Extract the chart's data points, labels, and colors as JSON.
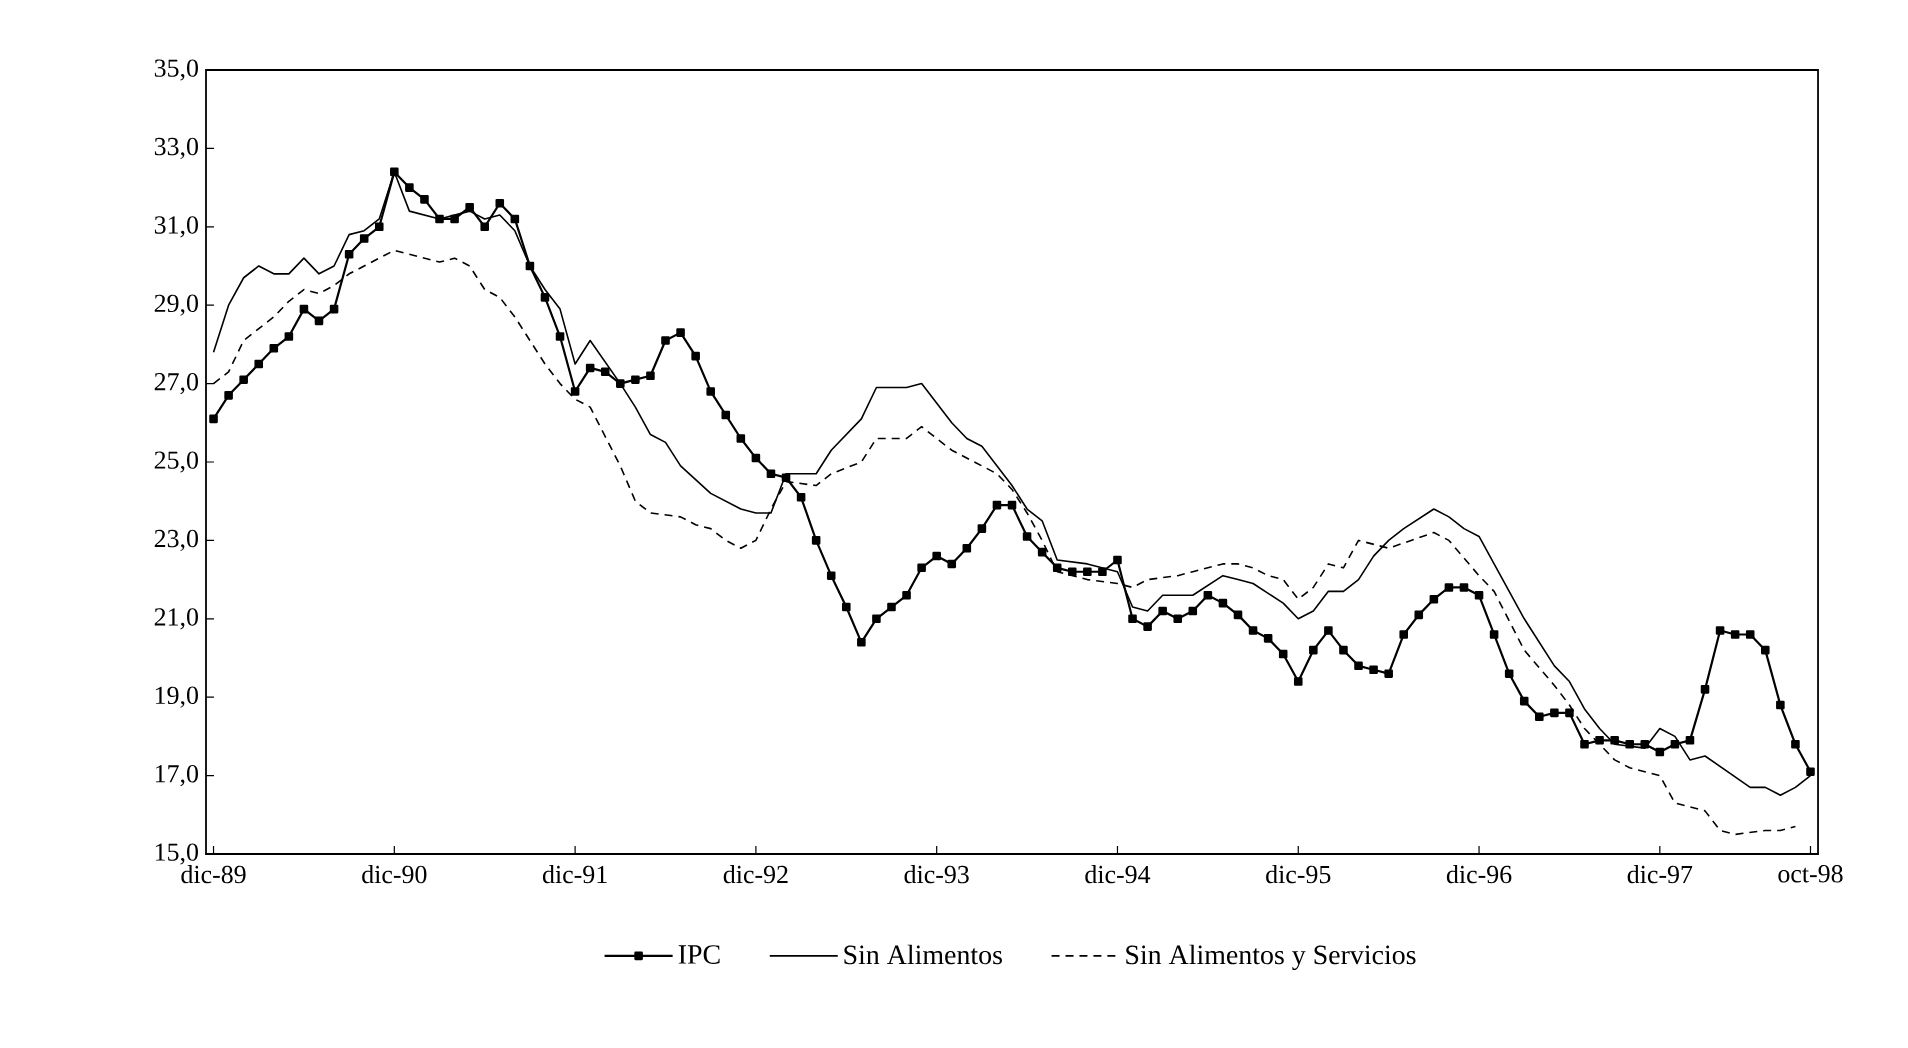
{
  "chart_data": {
    "type": "line",
    "legend": "bottom",
    "grid": false,
    "xlim": [
      "1989-11-16",
      "1998-10-16"
    ],
    "xticks": [
      {
        "value": "1989-12",
        "label": "dic-89"
      },
      {
        "value": "1990-12",
        "label": "dic-90"
      },
      {
        "value": "1991-12",
        "label": "dic-91"
      },
      {
        "value": "1992-12",
        "label": "dic-92"
      },
      {
        "value": "1993-12",
        "label": "dic-93"
      },
      {
        "value": "1994-12",
        "label": "dic-94"
      },
      {
        "value": "1995-12",
        "label": "dic-95"
      },
      {
        "value": "1996-12",
        "label": "dic-96"
      },
      {
        "value": "1997-12",
        "label": "dic-97"
      },
      {
        "value": "1998-10",
        "label": "oct-98"
      }
    ],
    "ylim": [
      15,
      35
    ],
    "yticks": [
      {
        "value": 15,
        "label": "15,0"
      },
      {
        "value": 17,
        "label": "17,0"
      },
      {
        "value": 19,
        "label": "19,0"
      },
      {
        "value": 21,
        "label": "21,0"
      },
      {
        "value": 23,
        "label": "23,0"
      },
      {
        "value": 25,
        "label": "25,0"
      },
      {
        "value": 27,
        "label": "27,0"
      },
      {
        "value": 29,
        "label": "29,0"
      },
      {
        "value": 31,
        "label": "31,0"
      },
      {
        "value": 33,
        "label": "33,0"
      },
      {
        "value": 35,
        "label": "35,0"
      }
    ],
    "series": [
      {
        "name": "IPC",
        "color": "#000000",
        "marker": "square",
        "line_style": "solid",
        "x": [
          "1989-12",
          "1990-01",
          "1990-02",
          "1990-03",
          "1990-04",
          "1990-05",
          "1990-06",
          "1990-07",
          "1990-08",
          "1990-09",
          "1990-10",
          "1990-11",
          "1990-12",
          "1991-01",
          "1991-02",
          "1991-03",
          "1991-04",
          "1991-05",
          "1991-06",
          "1991-07",
          "1991-08",
          "1991-09",
          "1991-10",
          "1991-11",
          "1991-12",
          "1992-01",
          "1992-02",
          "1992-03",
          "1992-04",
          "1992-05",
          "1992-06",
          "1992-07",
          "1992-08",
          "1992-09",
          "1992-10",
          "1992-11",
          "1992-12",
          "1993-01",
          "1993-02",
          "1993-03",
          "1993-04",
          "1993-05",
          "1993-06",
          "1993-07",
          "1993-08",
          "1993-09",
          "1993-10",
          "1993-11",
          "1993-12",
          "1994-01",
          "1994-02",
          "1994-03",
          "1994-04",
          "1994-05",
          "1994-06",
          "1994-07",
          "1994-08",
          "1994-09",
          "1994-10",
          "1994-11",
          "1994-12",
          "1995-01",
          "1995-02",
          "1995-03",
          "1995-04",
          "1995-05",
          "1995-06",
          "1995-07",
          "1995-08",
          "1995-09",
          "1995-10",
          "1995-11",
          "1995-12",
          "1996-01",
          "1996-02",
          "1996-03",
          "1996-04",
          "1996-05",
          "1996-06",
          "1996-07",
          "1996-08",
          "1996-09",
          "1996-10",
          "1996-11",
          "1996-12",
          "1997-01",
          "1997-02",
          "1997-03",
          "1997-04",
          "1997-05",
          "1997-06",
          "1997-07",
          "1997-08",
          "1997-09",
          "1997-10",
          "1997-11",
          "1997-12",
          "1998-01",
          "1998-02",
          "1998-03",
          "1998-04",
          "1998-05",
          "1998-06",
          "1998-07",
          "1998-08",
          "1998-09",
          "1998-10"
        ],
        "values": [
          26.1,
          26.7,
          27.1,
          27.5,
          27.9,
          28.2,
          28.9,
          28.6,
          28.9,
          30.3,
          30.7,
          31.0,
          32.4,
          32.0,
          31.7,
          31.2,
          31.2,
          31.5,
          31.0,
          31.6,
          31.2,
          30.0,
          29.2,
          28.2,
          26.8,
          27.4,
          27.3,
          27.0,
          27.1,
          27.2,
          28.1,
          28.3,
          27.7,
          26.8,
          26.2,
          25.6,
          25.1,
          24.7,
          24.6,
          24.1,
          23.0,
          22.1,
          21.3,
          20.4,
          21.0,
          21.3,
          21.6,
          22.3,
          22.6,
          22.4,
          22.8,
          23.3,
          23.9,
          23.9,
          23.1,
          22.7,
          22.3,
          22.2,
          22.2,
          22.2,
          22.5,
          21.0,
          20.8,
          21.2,
          21.0,
          21.2,
          21.6,
          21.4,
          21.1,
          20.7,
          20.5,
          20.1,
          19.4,
          20.2,
          20.7,
          20.2,
          19.8,
          19.7,
          19.6,
          20.6,
          21.1,
          21.5,
          21.8,
          21.8,
          21.6,
          20.6,
          19.6,
          18.9,
          18.5,
          18.6,
          18.6,
          17.8,
          17.9,
          17.9,
          17.8,
          17.8,
          17.6,
          17.8,
          17.9,
          19.2,
          20.7,
          20.6,
          20.6,
          20.2,
          18.8,
          17.8,
          17.1
        ]
      },
      {
        "name": "Sin Alimentos",
        "color": "#000000",
        "marker": "none",
        "line_style": "solid",
        "x": [
          "1989-12",
          "1990-01",
          "1990-02",
          "1990-03",
          "1990-04",
          "1990-05",
          "1990-06",
          "1990-07",
          "1990-08",
          "1990-09",
          "1990-10",
          "1990-11",
          "1990-12",
          "1991-01",
          "1991-03",
          "1991-05",
          "1991-06",
          "1991-07",
          "1991-08",
          "1991-09",
          "1991-10",
          "1991-11",
          "1991-12",
          "1992-01",
          "1992-03",
          "1992-04",
          "1992-05",
          "1992-06",
          "1992-07",
          "1992-09",
          "1992-11",
          "1992-12",
          "1993-01",
          "1993-02",
          "1993-04",
          "1993-05",
          "1993-07",
          "1993-08",
          "1993-10",
          "1993-11",
          "1994-01",
          "1994-02",
          "1994-03",
          "1994-05",
          "1994-06",
          "1994-07",
          "1994-08",
          "1994-10",
          "1994-12",
          "1995-01",
          "1995-02",
          "1995-03",
          "1995-05",
          "1995-07",
          "1995-08",
          "1995-09",
          "1995-11",
          "1995-12",
          "1996-01",
          "1996-02",
          "1996-03",
          "1996-04",
          "1996-05",
          "1996-06",
          "1996-07",
          "1996-09",
          "1996-10",
          "1996-11",
          "1996-12",
          "1997-01",
          "1997-03",
          "1997-05",
          "1997-06",
          "1997-07",
          "1997-08",
          "1997-09",
          "1997-11",
          "1997-12",
          "1998-01",
          "1998-02",
          "1998-03",
          "1998-06",
          "1998-07",
          "1998-08",
          "1998-09",
          "1998-10"
        ],
        "values": [
          27.8,
          29.0,
          29.7,
          30.0,
          29.8,
          29.8,
          30.2,
          29.8,
          30.0,
          30.8,
          30.9,
          31.2,
          32.4,
          31.4,
          31.2,
          31.4,
          31.2,
          31.3,
          30.9,
          30.0,
          29.4,
          28.9,
          27.5,
          28.1,
          27.0,
          26.4,
          25.7,
          25.5,
          24.9,
          24.2,
          23.8,
          23.7,
          23.7,
          24.7,
          24.7,
          25.3,
          26.1,
          26.9,
          26.9,
          27.0,
          26.0,
          25.6,
          25.4,
          24.4,
          23.8,
          23.5,
          22.5,
          22.4,
          22.2,
          21.3,
          21.2,
          21.6,
          21.6,
          22.1,
          22.0,
          21.9,
          21.4,
          21.0,
          21.2,
          21.7,
          21.7,
          22.0,
          22.6,
          23.0,
          23.3,
          23.8,
          23.6,
          23.3,
          23.1,
          22.4,
          21.0,
          19.8,
          19.4,
          18.7,
          18.2,
          17.8,
          17.7,
          18.2,
          18.0,
          17.4,
          17.5,
          16.7,
          16.7,
          16.5,
          16.7,
          17.0
        ]
      },
      {
        "name": "Sin Alimentos y Servicios",
        "color": "#000000",
        "marker": "none",
        "line_style": "dashed",
        "x": [
          "1989-12",
          "1990-01",
          "1990-02",
          "1990-04",
          "1990-05",
          "1990-06",
          "1990-07",
          "1990-08",
          "1990-09",
          "1990-10",
          "1990-11",
          "1990-12",
          "1991-01",
          "1991-03",
          "1991-04",
          "1991-05",
          "1991-06",
          "1991-07",
          "1991-08",
          "1991-09",
          "1991-10",
          "1991-11",
          "1991-12",
          "1992-01",
          "1992-03",
          "1992-04",
          "1992-05",
          "1992-07",
          "1992-08",
          "1992-09",
          "1992-10",
          "1992-11",
          "1992-12",
          "1993-01",
          "1993-02",
          "1993-04",
          "1993-05",
          "1993-07",
          "1993-08",
          "1993-10",
          "1993-11",
          "1994-01",
          "1994-03",
          "1994-04",
          "1994-05",
          "1994-06",
          "1994-07",
          "1994-08",
          "1994-10",
          "1994-12",
          "1995-01",
          "1995-02",
          "1995-04",
          "1995-05",
          "1995-07",
          "1995-08",
          "1995-09",
          "1995-10",
          "1995-11",
          "1995-12",
          "1996-01",
          "1996-02",
          "1996-03",
          "1996-04",
          "1996-06",
          "1996-09",
          "1996-10",
          "1996-12",
          "1997-01",
          "1997-03",
          "1997-05",
          "1997-06",
          "1997-07",
          "1997-08",
          "1997-09",
          "1997-10",
          "1997-11",
          "1997-12",
          "1998-01",
          "1998-03",
          "1998-04",
          "1998-05",
          "1998-07",
          "1998-08",
          "1998-09"
        ],
        "values": [
          27.0,
          27.3,
          28.1,
          28.7,
          29.1,
          29.4,
          29.3,
          29.5,
          29.8,
          30.0,
          30.2,
          30.4,
          30.3,
          30.1,
          30.2,
          30.0,
          29.4,
          29.2,
          28.7,
          28.1,
          27.5,
          27.0,
          26.6,
          26.4,
          24.9,
          24.0,
          23.7,
          23.6,
          23.4,
          23.3,
          23.0,
          22.8,
          23.0,
          23.8,
          24.5,
          24.4,
          24.7,
          25.0,
          25.6,
          25.6,
          25.9,
          25.3,
          24.9,
          24.7,
          24.3,
          23.7,
          23.0,
          22.2,
          22.0,
          21.9,
          21.8,
          22.0,
          22.1,
          22.2,
          22.4,
          22.4,
          22.3,
          22.1,
          22.0,
          21.5,
          21.8,
          22.4,
          22.3,
          23.0,
          22.8,
          23.2,
          23.0,
          22.1,
          21.7,
          20.2,
          19.3,
          18.8,
          18.2,
          17.8,
          17.4,
          17.2,
          17.1,
          17.0,
          16.3,
          16.1,
          15.6,
          15.5,
          15.6,
          15.6,
          15.7
        ]
      }
    ]
  }
}
